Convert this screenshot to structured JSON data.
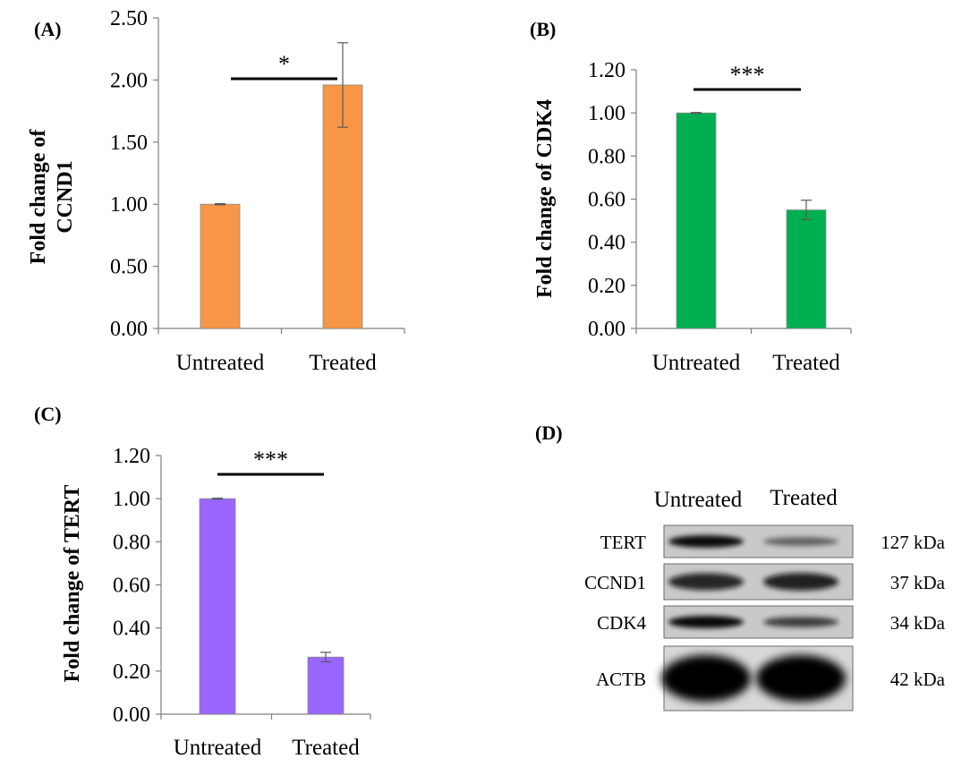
{
  "chart_data": [
    {
      "type": "bar",
      "panel": "(A)",
      "categories": [
        "Untreated",
        "Treated"
      ],
      "values": [
        1.0,
        1.96
      ],
      "errors": [
        0.005,
        0.34
      ],
      "ylabel_lines": [
        "Fold change of",
        "CCND1"
      ],
      "ylim": [
        0,
        2.5
      ],
      "yticks": [
        "0.00",
        "0.50",
        "1.00",
        "1.50",
        "2.00",
        "2.50"
      ],
      "significance": "*",
      "color": "#F79646"
    },
    {
      "type": "bar",
      "panel": "(B)",
      "categories": [
        "Untreated",
        "Treated"
      ],
      "values": [
        1.0,
        0.55
      ],
      "errors": [
        0.002,
        0.045
      ],
      "ylabel_lines": [
        "Fold change of CDK4"
      ],
      "ylim": [
        0,
        1.2
      ],
      "yticks": [
        "0.00",
        "0.20",
        "0.40",
        "0.60",
        "0.80",
        "1.00",
        "1.20"
      ],
      "significance": "***",
      "color": "#00B050"
    },
    {
      "type": "bar",
      "panel": "(C)",
      "categories": [
        "Untreated",
        "Treated"
      ],
      "values": [
        1.0,
        0.265
      ],
      "errors": [
        0.002,
        0.022
      ],
      "ylabel_lines": [
        "Fold change of TERT"
      ],
      "ylim": [
        0,
        1.2
      ],
      "yticks": [
        "0.00",
        "0.20",
        "0.40",
        "0.60",
        "0.80",
        "1.00",
        "1.20"
      ],
      "significance": "***",
      "color": "#9966FF"
    }
  ],
  "western_blot": {
    "panel": "(D)",
    "columns": [
      "Untreated",
      "Treated"
    ],
    "rows": [
      {
        "protein": "TERT",
        "mw": "127 kDa",
        "intensity": [
          0.9,
          0.35
        ]
      },
      {
        "protein": "CCND1",
        "mw": "37 kDa",
        "intensity": [
          0.75,
          0.8
        ]
      },
      {
        "protein": "CDK4",
        "mw": "34 kDa",
        "intensity": [
          0.92,
          0.6
        ]
      },
      {
        "protein": "ACTB",
        "mw": "42 kDa",
        "intensity": [
          1.0,
          1.0
        ]
      }
    ]
  }
}
